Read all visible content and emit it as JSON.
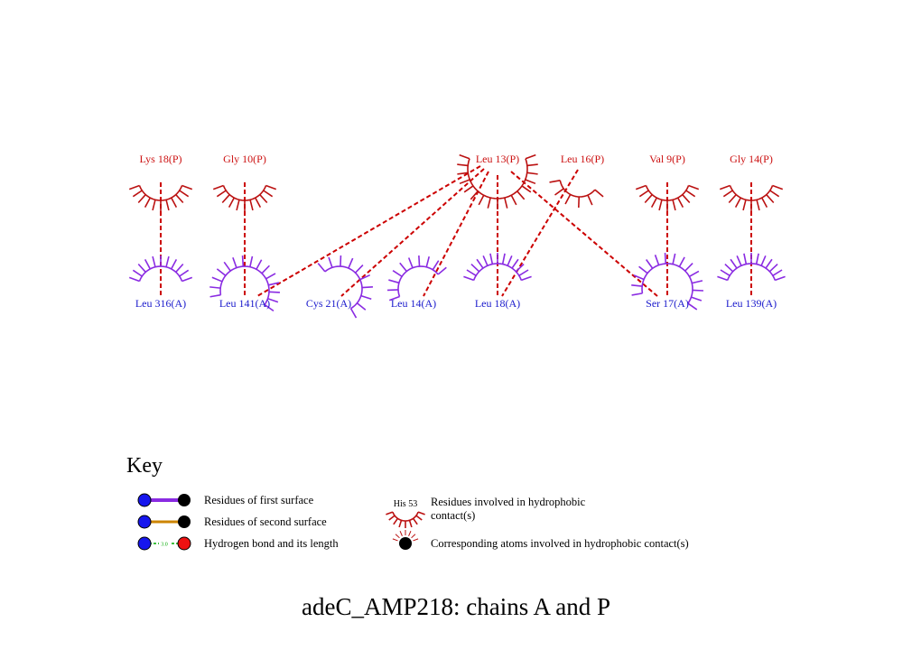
{
  "title": "adeC_AMP218: chains A and P",
  "colors": {
    "chain_p": "#cc1111",
    "chain_a": "#1a1acc",
    "arc_p": "#bb1111",
    "arc_a": "#8a2be2",
    "contact_line": "#cc0000",
    "surface1_bond": "#8a2be2",
    "surface2_bond": "#cc8400",
    "hbond": "#00aa00"
  },
  "residues_p": [
    {
      "id": "lys18p",
      "label": "Lys 18(P)"
    },
    {
      "id": "gly10p",
      "label": "Gly 10(P)"
    },
    {
      "id": "leu13p",
      "label": "Leu 13(P)"
    },
    {
      "id": "leu16p",
      "label": "Leu 16(P)"
    },
    {
      "id": "val9p",
      "label": "Val 9(P)"
    },
    {
      "id": "gly14p",
      "label": "Gly 14(P)"
    }
  ],
  "residues_a": [
    {
      "id": "leu316a",
      "label": "Leu 316(A)"
    },
    {
      "id": "leu141a",
      "label": "Leu 141(A)"
    },
    {
      "id": "cys21a",
      "label": "Cys 21(A)"
    },
    {
      "id": "leu14a",
      "label": "Leu 14(A)"
    },
    {
      "id": "leu18a",
      "label": "Leu 18(A)"
    },
    {
      "id": "ser17a",
      "label": "Ser 17(A)"
    },
    {
      "id": "leu139a",
      "label": "Leu 139(A)"
    }
  ],
  "contacts": [
    {
      "from": "lys18p",
      "to": "leu316a"
    },
    {
      "from": "gly10p",
      "to": "leu141a"
    },
    {
      "from": "leu13p",
      "to": "leu141a"
    },
    {
      "from": "leu13p",
      "to": "cys21a"
    },
    {
      "from": "leu13p",
      "to": "leu14a"
    },
    {
      "from": "leu13p",
      "to": "leu18a"
    },
    {
      "from": "leu13p",
      "to": "ser17a"
    },
    {
      "from": "leu16p",
      "to": "leu18a"
    },
    {
      "from": "val9p",
      "to": "ser17a"
    },
    {
      "from": "gly14p",
      "to": "leu139a"
    }
  ],
  "key": {
    "title": "Key",
    "surface1": "Residues of first surface",
    "surface2": "Residues of second surface",
    "hbond": "Hydrogen bond and its length",
    "hbond_length": "3.0",
    "hydrophobic_sample": "His 53",
    "hydrophobic_line1": "Residues involved in hydrophobic",
    "hydrophobic_line2": "contact(s)",
    "atoms": "Corresponding atoms involved in hydrophobic contact(s)"
  }
}
